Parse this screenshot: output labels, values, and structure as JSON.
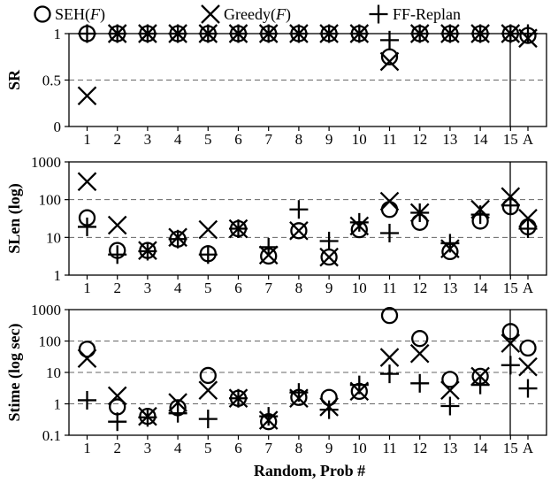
{
  "legend": [
    {
      "series": "seh",
      "label_main": "SEH(",
      "label_italic": "F",
      "label_close": ")"
    },
    {
      "series": "greedy",
      "label_main": "Greedy(",
      "label_italic": "F",
      "label_close": ")"
    },
    {
      "series": "ff",
      "label_main": "FF-Replan",
      "label_italic": "",
      "label_close": ""
    }
  ],
  "xlabel": "Random, Prob #",
  "categories": [
    "1",
    "2",
    "3",
    "4",
    "5",
    "6",
    "7",
    "8",
    "9",
    "10",
    "11",
    "12",
    "13",
    "14",
    "15",
    "A"
  ],
  "chart_data": [
    {
      "type": "scatter",
      "id": "sr",
      "ylabel": "SR",
      "yscale": "linear",
      "ylim": [
        0,
        1.0
      ],
      "yticks": [
        0,
        0.5,
        1
      ],
      "ytick_labels": [
        "0",
        "0.5",
        "1"
      ],
      "grid": "dashed-horizontal",
      "series": [
        {
          "name": "SEH(F)",
          "marker": "circle",
          "values": [
            1,
            1,
            1,
            1,
            1,
            1,
            1,
            1,
            1,
            1,
            0.75,
            1,
            1,
            1,
            1,
            0.98
          ]
        },
        {
          "name": "Greedy(F)",
          "marker": "x",
          "values": [
            0.33,
            1,
            1,
            1,
            1,
            1,
            1,
            1,
            1,
            1,
            0.7,
            1,
            1,
            1,
            1,
            0.95
          ]
        },
        {
          "name": "FF-Replan",
          "marker": "plus",
          "values": [
            1,
            1,
            1,
            1,
            1,
            1,
            1,
            1,
            1,
            1,
            0.93,
            1,
            1,
            1,
            1,
            1
          ]
        }
      ]
    },
    {
      "type": "scatter",
      "id": "slen",
      "ylabel": "SLen (log)",
      "yscale": "log",
      "ylim": [
        1,
        1000
      ],
      "yticks": [
        1,
        10,
        100,
        1000
      ],
      "ytick_labels": [
        "1",
        "10",
        "100",
        "1000"
      ],
      "grid": "dashed-horizontal",
      "series": [
        {
          "name": "SEH(F)",
          "marker": "circle",
          "values": [
            33,
            4.5,
            4.5,
            9,
            3.7,
            17,
            3.2,
            15,
            3,
            16,
            55,
            25,
            4.2,
            27,
            65,
            19
          ]
        },
        {
          "name": "Greedy(F)",
          "marker": "x",
          "values": [
            300,
            21,
            4.5,
            10,
            16,
            17,
            3.4,
            15,
            3,
            20,
            90,
            45,
            5,
            55,
            120,
            32
          ]
        },
        {
          "name": "FF-Replan",
          "marker": "plus",
          "values": [
            19,
            3.5,
            4.3,
            9,
            3.5,
            17,
            5.5,
            55,
            8,
            25,
            13,
            45,
            7,
            40,
            70,
            17
          ]
        }
      ]
    },
    {
      "type": "scatter",
      "id": "stime",
      "ylabel": "Stime (log sec)",
      "yscale": "log",
      "ylim": [
        0.1,
        1000
      ],
      "yticks": [
        0.1,
        1,
        10,
        100,
        1000
      ],
      "ytick_labels": [
        "0.1",
        "1",
        "10",
        "100",
        "1000"
      ],
      "grid": "dashed-horizontal",
      "series": [
        {
          "name": "SEH(F)",
          "marker": "circle",
          "values": [
            55,
            0.8,
            0.4,
            0.75,
            8,
            1.5,
            0.27,
            1.6,
            1.6,
            2.5,
            650,
            120,
            6,
            7.5,
            200,
            60
          ]
        },
        {
          "name": "Greedy(F)",
          "marker": "x",
          "values": [
            28,
            1.8,
            0.4,
            1.1,
            2.7,
            1.5,
            0.3,
            1.5,
            0.8,
            2.5,
            30,
            40,
            2.7,
            7.5,
            85,
            15
          ]
        },
        {
          "name": "FF-Replan",
          "marker": "plus",
          "values": [
            1.3,
            0.27,
            0.37,
            0.5,
            0.33,
            1.5,
            0.4,
            2.3,
            0.65,
            4,
            9,
            4.5,
            0.85,
            4,
            17,
            3.1
          ]
        }
      ]
    }
  ]
}
